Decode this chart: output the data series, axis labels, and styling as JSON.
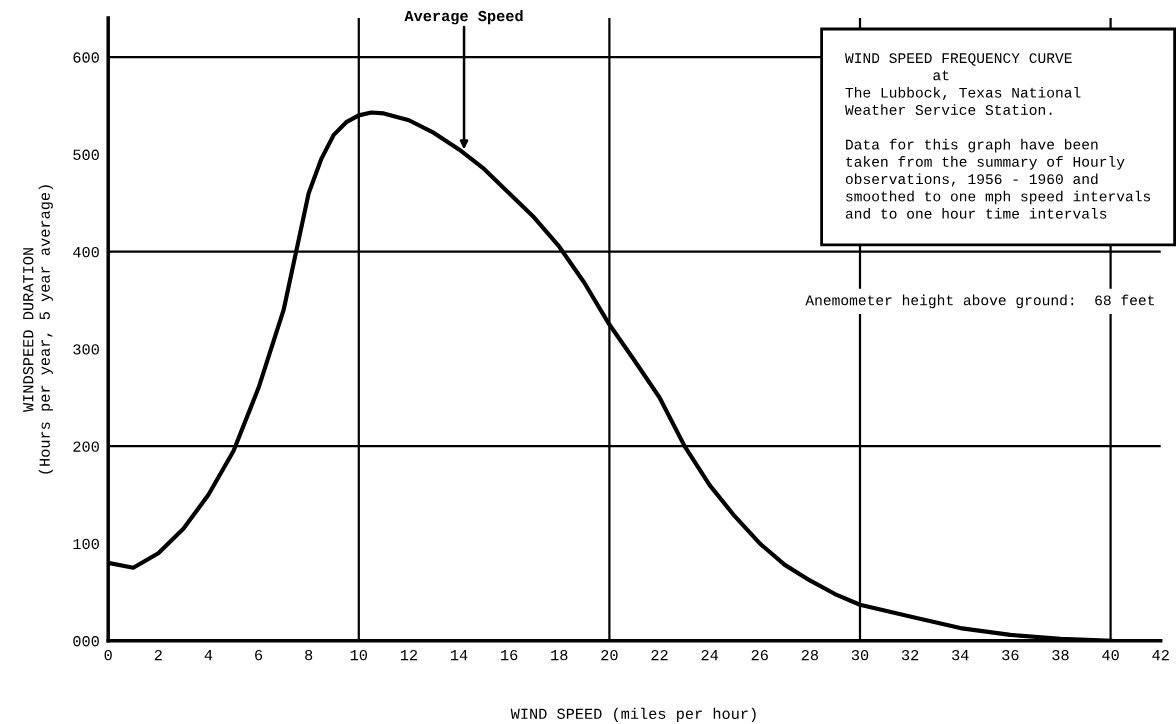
{
  "chart_data": {
    "type": "line",
    "xlabel": "WIND SPEED (miles per hour)",
    "ylabel": "WINDSPEED DURATION\n(Hours per year, 5 year average)",
    "x": [
      0,
      1,
      2,
      3,
      4,
      5,
      6,
      6.5,
      7,
      7.5,
      8,
      8.5,
      9,
      9.5,
      10,
      10.5,
      11,
      12,
      13,
      14,
      15,
      16,
      17,
      18,
      19,
      20,
      21,
      22,
      23,
      24,
      25,
      26,
      27,
      28,
      29,
      30,
      32,
      34,
      36,
      38,
      40
    ],
    "series": [
      {
        "color": "#000000",
        "values": [
          80,
          75,
          90,
          115,
          150,
          195,
          260,
          300,
          340,
          400,
          460,
          495,
          520,
          533,
          540,
          543,
          542,
          535,
          522,
          505,
          485,
          460,
          435,
          405,
          368,
          325,
          288,
          250,
          200,
          160,
          128,
          100,
          78,
          62,
          48,
          37,
          25,
          13,
          6,
          2,
          0
        ]
      }
    ],
    "xlim": [
      0,
      42
    ],
    "xticks": [
      0,
      2,
      4,
      6,
      8,
      10,
      12,
      14,
      16,
      18,
      20,
      22,
      24,
      26,
      28,
      30,
      32,
      34,
      36,
      38,
      40,
      42
    ],
    "ylim": [
      0,
      640
    ],
    "yticks": [
      {
        "value": 0,
        "label": "000"
      },
      100,
      200,
      300,
      400,
      500,
      600
    ],
    "ref_lines": [
      {
        "axis": "x",
        "value": 10
      },
      {
        "axis": "x",
        "value": 20
      },
      {
        "axis": "x",
        "value": 30
      },
      {
        "axis": "x",
        "value": 40
      },
      {
        "axis": "y",
        "value": 200
      },
      {
        "axis": "y",
        "value": 400
      },
      {
        "axis": "y",
        "value": 600
      }
    ],
    "annotations": [
      {
        "text": "Average Speed",
        "x": 14.2,
        "y": 505
      },
      "WIND SPEED FREQUENCY CURVE\n          at\nThe Lubbock, Texas National\nWeather Service Station.\n\nData for this graph have been\ntaken from the summary of Hourly\nobservations, 1956 - 1960 and\nsmoothed to one mph speed intervals\nand to one hour time intervals",
      "Anemometer height above ground:  68 feet"
    ],
    "grid": false,
    "legend": false,
    "marker": "none",
    "line_style": "solid"
  }
}
